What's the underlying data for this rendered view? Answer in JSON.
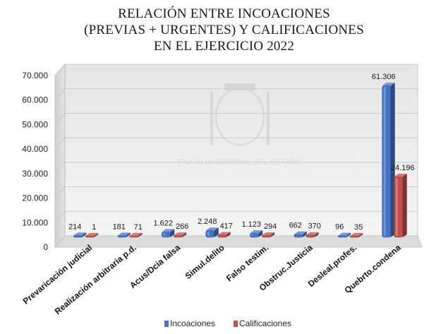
{
  "title_lines": [
    "RELACIÓN ENTRE INCOACIONES",
    "(PREVIAS + URGENTES) Y CALIFICACIONES",
    "EN EL EJERCICIO 2022"
  ],
  "watermark": "FISCALÍA GENERAL DEL ESTADO",
  "chart_data": {
    "type": "bar",
    "title": "RELACIÓN ENTRE INCOACIONES (PREVIAS + URGENTES) Y CALIFICACIONES EN EL EJERCICIO 2022",
    "categories": [
      "Prevaricación judicial",
      "Realización arbitraria p.d.",
      "Acus/Dcia falsa",
      "Simul.delito",
      "Falso testim.",
      "Obstruc.Justicia",
      "Desleal.profes.",
      "Quebrto.condena"
    ],
    "series": [
      {
        "name": "Incoaciones",
        "color": "#4472c4",
        "values": [
          214,
          181,
          1622,
          2248,
          1123,
          662,
          96,
          61306
        ],
        "labels": [
          "214",
          "181",
          "1.622",
          "2.248",
          "1.123",
          "662",
          "96",
          "61.306"
        ]
      },
      {
        "name": "Calificaciones",
        "color": "#c0504d",
        "values": [
          1,
          71,
          266,
          417,
          294,
          370,
          35,
          24196
        ],
        "labels": [
          "1",
          "71",
          "266",
          "417",
          "294",
          "370",
          "35",
          "24.196"
        ]
      }
    ],
    "y_ticks": [
      0,
      10000,
      20000,
      30000,
      40000,
      50000,
      60000,
      70000
    ],
    "y_tick_labels": [
      "0",
      "10.000",
      "20.000",
      "30.000",
      "40.000",
      "50.000",
      "60.000",
      "70.000"
    ],
    "ylim": [
      0,
      70000
    ],
    "xlabel": "",
    "ylabel": "",
    "grid": true,
    "legend": "bottom",
    "style": "3d"
  }
}
